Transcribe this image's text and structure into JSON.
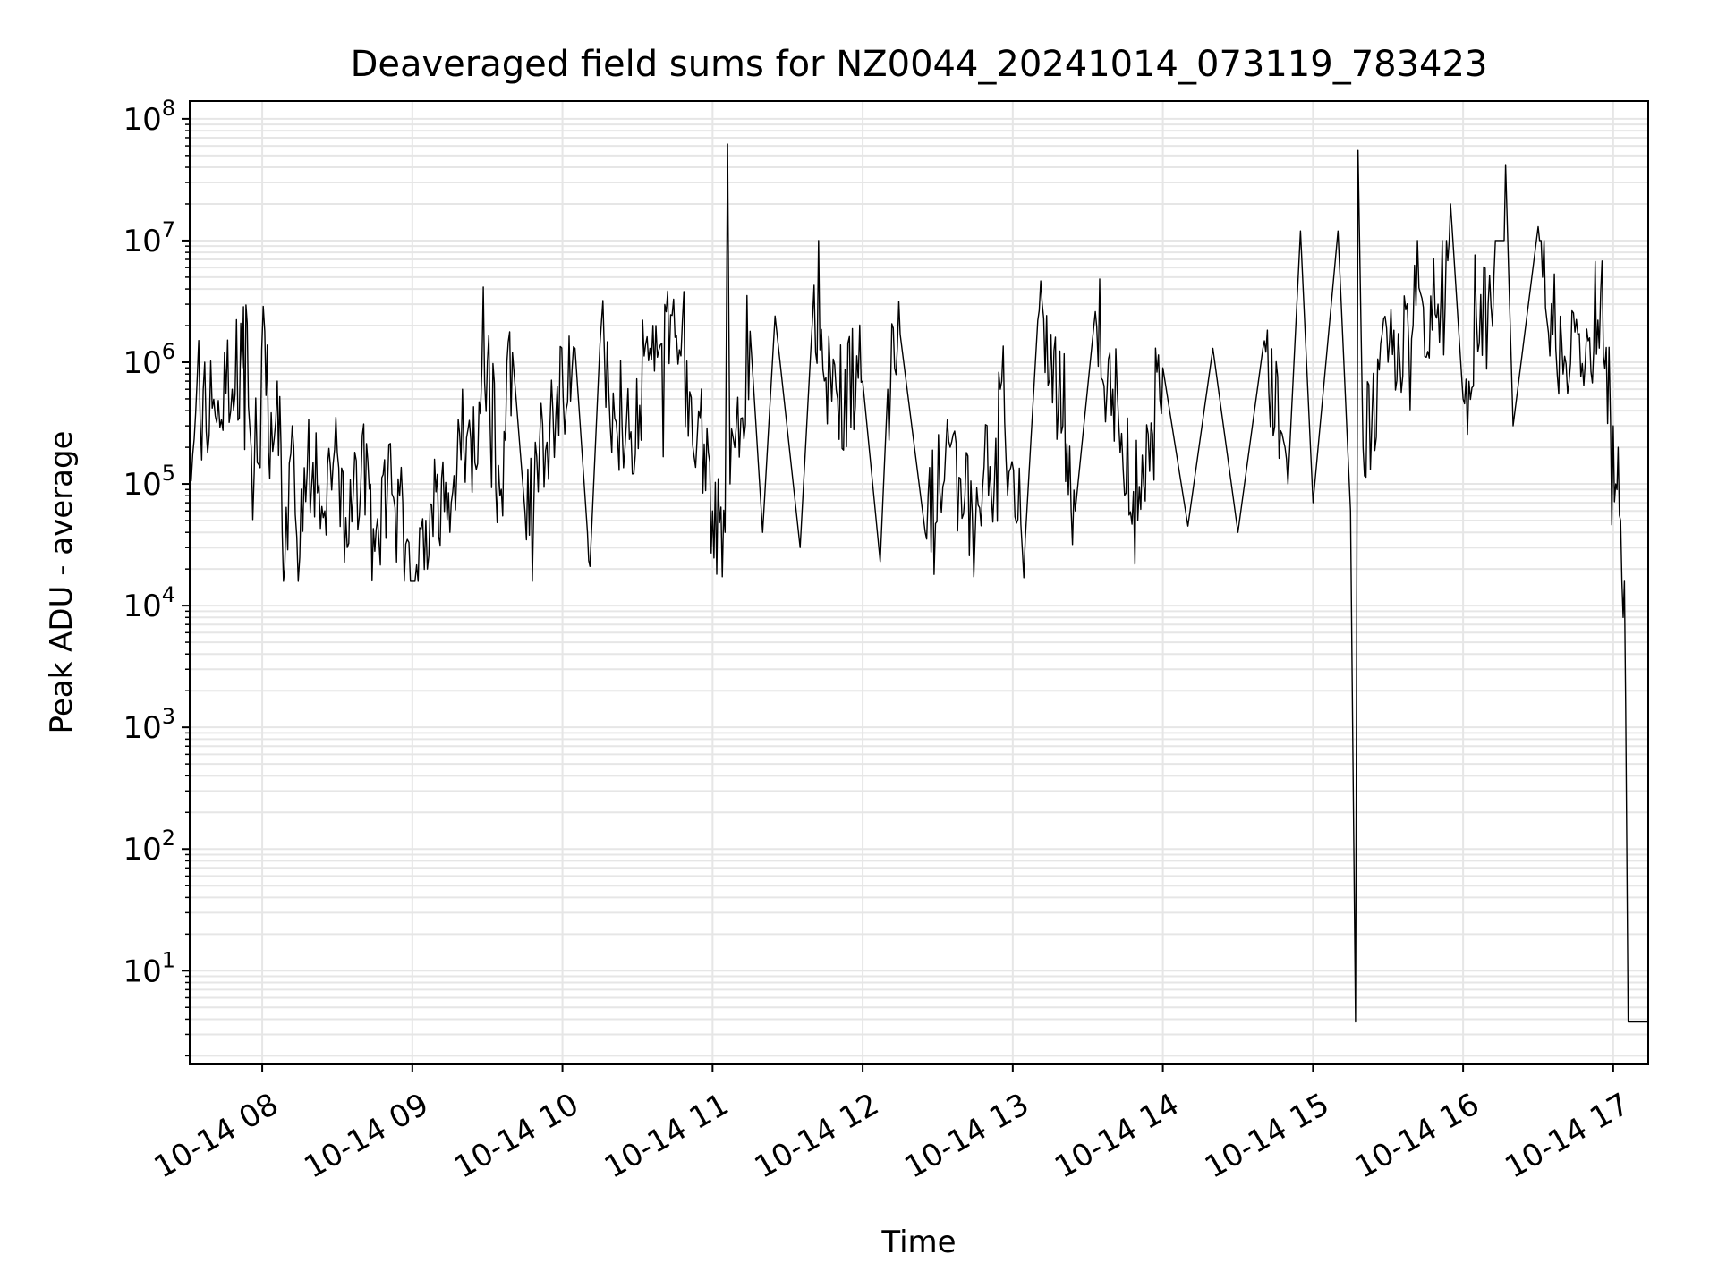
{
  "colors": {
    "background": "#ffffff",
    "line": "#000000",
    "grid": "#e6e6e6",
    "axis": "#000000"
  },
  "chart_data": {
    "type": "line",
    "title": "Deaveraged field sums for NZ0044_20241014_073119_783423",
    "xlabel": "Time",
    "ylabel": "Peak ADU - average",
    "yscale": "log",
    "grid": true,
    "legend": "none",
    "xlim": [
      "2024-10-14 07:31",
      "2024-10-14 17:14"
    ],
    "ylim": [
      1.7,
      140000000
    ],
    "xticks": [
      {
        "t": "2024-10-14 08:00",
        "label": "10-14 08"
      },
      {
        "t": "2024-10-14 09:00",
        "label": "10-14 09"
      },
      {
        "t": "2024-10-14 10:00",
        "label": "10-14 10"
      },
      {
        "t": "2024-10-14 11:00",
        "label": "10-14 11"
      },
      {
        "t": "2024-10-14 12:00",
        "label": "10-14 12"
      },
      {
        "t": "2024-10-14 13:00",
        "label": "10-14 13"
      },
      {
        "t": "2024-10-14 14:00",
        "label": "10-14 14"
      },
      {
        "t": "2024-10-14 15:00",
        "label": "10-14 15"
      },
      {
        "t": "2024-10-14 16:00",
        "label": "10-14 16"
      },
      {
        "t": "2024-10-14 17:00",
        "label": "10-14 17"
      }
    ],
    "yticks": [
      {
        "value": 10,
        "base": "10",
        "exp": "1"
      },
      {
        "value": 100,
        "base": "10",
        "exp": "2"
      },
      {
        "value": 1000,
        "base": "10",
        "exp": "3"
      },
      {
        "value": 10000,
        "base": "10",
        "exp": "4"
      },
      {
        "value": 100000,
        "base": "10",
        "exp": "5"
      },
      {
        "value": 1000000,
        "base": "10",
        "exp": "6"
      },
      {
        "value": 10000000,
        "base": "10",
        "exp": "7"
      },
      {
        "value": 100000000,
        "base": "10",
        "exp": "8"
      }
    ],
    "series": [
      {
        "points": [
          [
            "2024-10-14 07:31",
            330000
          ],
          [
            "2024-10-14 07:40",
            420000
          ],
          [
            "2024-10-14 07:48",
            600000
          ],
          [
            "2024-10-14 07:52",
            900000
          ],
          [
            "2024-10-14 07:54",
            2100000
          ],
          [
            "2024-10-14 07:55",
            300000
          ],
          [
            "2024-10-14 07:58",
            150000
          ],
          [
            "2024-10-14 08:01",
            1800000
          ],
          [
            "2024-10-14 08:03",
            110000
          ],
          [
            "2024-10-14 08:06",
            700000
          ],
          [
            "2024-10-14 08:08",
            40000
          ],
          [
            "2024-10-14 08:09",
            20000
          ],
          [
            "2024-10-14 08:12",
            300000
          ],
          [
            "2024-10-14 08:15",
            25000
          ],
          [
            "2024-10-14 08:18",
            130000
          ],
          [
            "2024-10-14 08:25",
            60000
          ],
          [
            "2024-10-14 08:30",
            180000
          ],
          [
            "2024-10-14 08:34",
            30000
          ],
          [
            "2024-10-14 08:40",
            250000
          ],
          [
            "2024-10-14 08:45",
            28000
          ],
          [
            "2024-10-14 08:50",
            90000
          ],
          [
            "2024-10-14 08:58",
            35000
          ],
          [
            "2024-10-14 09:06",
            20000
          ],
          [
            "2024-10-14 09:10",
            120000
          ],
          [
            "2024-10-14 09:15",
            40000
          ],
          [
            "2024-10-14 09:20",
            600000
          ],
          [
            "2024-10-14 09:25",
            150000
          ],
          [
            "2024-10-14 09:30",
            1000000
          ],
          [
            "2024-10-14 09:35",
            80000
          ],
          [
            "2024-10-14 09:40",
            1200000
          ],
          [
            "2024-10-14 09:45",
            60000
          ],
          [
            "2024-10-14 09:55",
            300000
          ],
          [
            "2024-10-14 10:05",
            1300000
          ],
          [
            "2024-10-14 10:10",
            40000
          ],
          [
            "2024-10-14 10:11",
            21000
          ],
          [
            "2024-10-14 10:15",
            1400000
          ],
          [
            "2024-10-14 10:25",
            200000
          ],
          [
            "2024-10-14 10:35",
            1300000
          ],
          [
            "2024-10-14 10:45",
            1600000
          ],
          [
            "2024-10-14 10:55",
            350000
          ],
          [
            "2024-10-14 11:00",
            60000
          ],
          [
            "2024-10-14 11:05",
            40000
          ],
          [
            "2024-10-14 11:06",
            62000000
          ],
          [
            "2024-10-14 11:07",
            100000
          ],
          [
            "2024-10-14 11:15",
            1800000
          ],
          [
            "2024-10-14 11:20",
            40000
          ],
          [
            "2024-10-14 11:25",
            2400000
          ],
          [
            "2024-10-14 11:35",
            30000
          ],
          [
            "2024-10-14 11:40",
            2400000
          ],
          [
            "2024-10-14 11:50",
            500000
          ],
          [
            "2024-10-14 12:00",
            700000
          ],
          [
            "2024-10-14 12:07",
            23000
          ],
          [
            "2024-10-14 12:10",
            600000
          ],
          [
            "2024-10-14 12:15",
            1700000
          ],
          [
            "2024-10-14 12:25",
            40000
          ],
          [
            "2024-10-14 12:35",
            200000
          ],
          [
            "2024-10-14 12:45",
            40000
          ],
          [
            "2024-10-14 12:55",
            600000
          ],
          [
            "2024-10-14 13:05",
            35000
          ],
          [
            "2024-10-14 13:10",
            2200000
          ],
          [
            "2024-10-14 13:20",
            300000
          ],
          [
            "2024-10-14 13:25",
            60000
          ],
          [
            "2024-10-14 13:33",
            2600000
          ],
          [
            "2024-10-14 13:40",
            600000
          ],
          [
            "2024-10-14 13:50",
            50000
          ],
          [
            "2024-10-14 14:00",
            900000
          ],
          [
            "2024-10-14 14:10",
            45000
          ],
          [
            "2024-10-14 14:20",
            1300000
          ],
          [
            "2024-10-14 14:30",
            40000
          ],
          [
            "2024-10-14 14:40",
            1300000
          ],
          [
            "2024-10-14 14:50",
            100000
          ],
          [
            "2024-10-14 14:55",
            12000000
          ],
          [
            "2024-10-14 15:00",
            70000
          ],
          [
            "2024-10-14 15:10",
            12000000
          ],
          [
            "2024-10-14 15:15",
            60000
          ],
          [
            "2024-10-14 15:17",
            3.8
          ],
          [
            "2024-10-14 15:18",
            55000000
          ],
          [
            "2024-10-14 15:20",
            200000
          ],
          [
            "2024-10-14 15:30",
            1000000
          ],
          [
            "2024-10-14 15:40",
            2000000
          ],
          [
            "2024-10-14 15:50",
            3000000
          ],
          [
            "2024-10-14 15:55",
            20000000
          ],
          [
            "2024-10-14 16:00",
            500000
          ],
          [
            "2024-10-14 16:10",
            3000000
          ],
          [
            "2024-10-14 16:17",
            42000000
          ],
          [
            "2024-10-14 16:20",
            300000
          ],
          [
            "2024-10-14 16:30",
            13000000
          ],
          [
            "2024-10-14 16:40",
            800000
          ],
          [
            "2024-10-14 16:50",
            1500000
          ],
          [
            "2024-10-14 16:55",
            3800000
          ],
          [
            "2024-10-14 17:00",
            300000
          ],
          [
            "2024-10-14 17:01",
            100000
          ],
          [
            "2024-10-14 17:02",
            200000
          ],
          [
            "2024-10-14 17:03",
            50000
          ],
          [
            "2024-10-14 17:04",
            8000
          ],
          [
            "2024-10-14 17:05",
            1500
          ],
          [
            "2024-10-14 17:06",
            3.8
          ],
          [
            "2024-10-14 17:14",
            3.8
          ]
        ]
      }
    ]
  }
}
